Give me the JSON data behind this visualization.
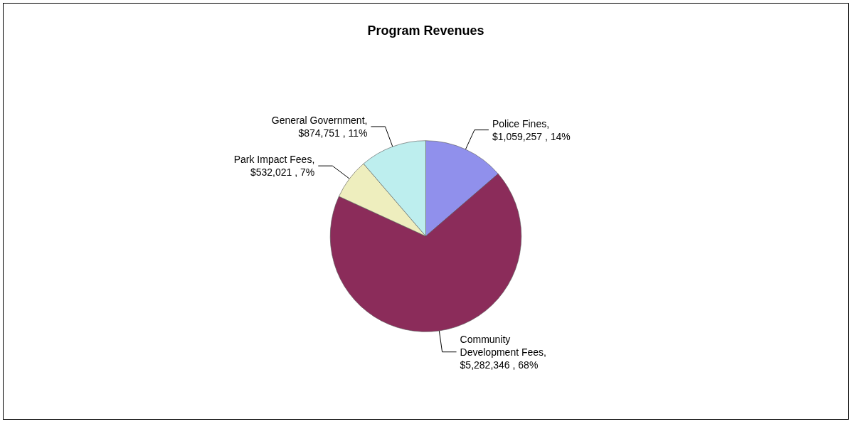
{
  "chart_data": {
    "type": "pie",
    "title": "Program Revenues",
    "categories": [
      "Police Fines",
      "Community Development Fees",
      "Park Impact Fees",
      "General Government"
    ],
    "values": [
      1059257,
      5282346,
      532021,
      874751
    ],
    "colors": [
      "#9090ec",
      "#8b2c5a",
      "#eeeebe",
      "#bdeeee"
    ],
    "value_labels": [
      ", $1,059,257 , 14%",
      ", $5,282,346 , 68%",
      ", $532,021 , 7%",
      ", $874,751 , 11%"
    ],
    "legend": false
  }
}
